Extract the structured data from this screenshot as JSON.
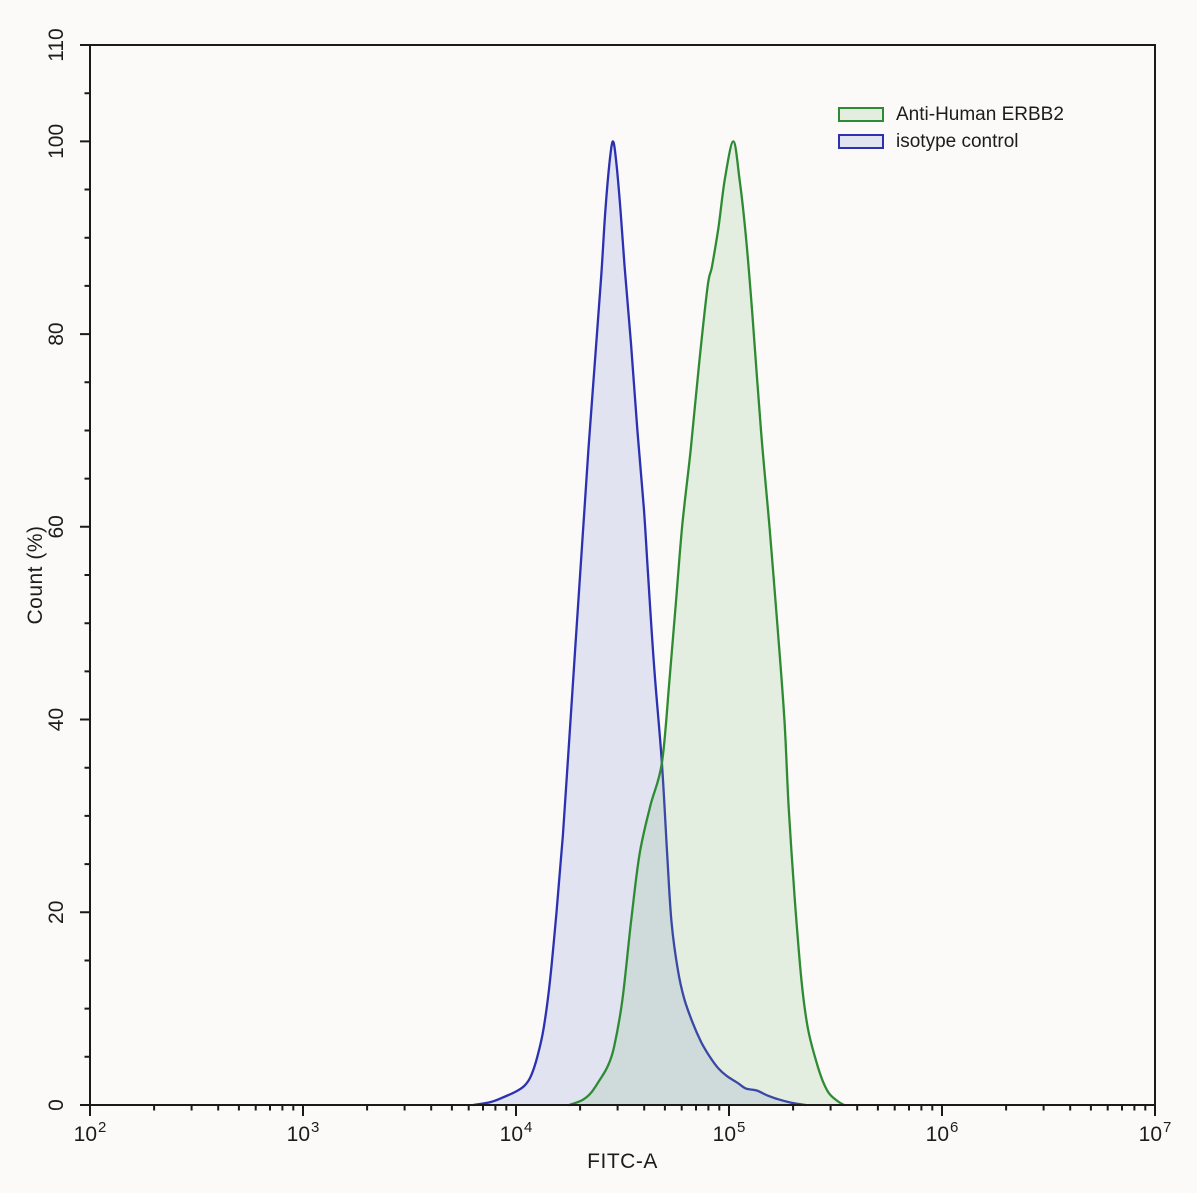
{
  "figure": {
    "background": "#fbfaf8",
    "axis_color": "#1a1a1a",
    "text_color": "#1c1c1c"
  },
  "chart_data": {
    "type": "area",
    "title": "",
    "xlabel": "FITC-A",
    "ylabel": "Count (%)",
    "x_scale": "log10",
    "x_range_log10": [
      2,
      7
    ],
    "x_major_tick_exponents": [
      2,
      3,
      4,
      5,
      6,
      7
    ],
    "ylim": [
      0,
      110
    ],
    "y_major_ticks": [
      0,
      20,
      40,
      60,
      80,
      100,
      110
    ],
    "y_minor_tick_step": 5,
    "grid": false,
    "legend_position": "top-right",
    "series": [
      {
        "name": "Anti-Human ERBB2",
        "stroke": "#2f8b33",
        "fill": "rgba(125,185,115,0.18)",
        "peak_log10": 5.02,
        "peak_pct": 100,
        "points": [
          [
            4.25,
            0
          ],
          [
            4.31,
            0.5
          ],
          [
            4.35,
            1.2
          ],
          [
            4.39,
            2.5
          ],
          [
            4.43,
            4.0
          ],
          [
            4.46,
            6.0
          ],
          [
            4.5,
            11
          ],
          [
            4.54,
            19
          ],
          [
            4.58,
            26
          ],
          [
            4.63,
            31
          ],
          [
            4.685,
            35.5
          ],
          [
            4.72,
            44
          ],
          [
            4.75,
            52
          ],
          [
            4.78,
            60
          ],
          [
            4.82,
            68
          ],
          [
            4.86,
            77
          ],
          [
            4.9,
            85
          ],
          [
            4.92,
            87
          ],
          [
            4.95,
            91
          ],
          [
            4.98,
            96
          ],
          [
            5.02,
            100
          ],
          [
            5.05,
            96
          ],
          [
            5.08,
            90
          ],
          [
            5.11,
            82
          ],
          [
            5.15,
            70
          ],
          [
            5.19,
            60
          ],
          [
            5.23,
            49
          ],
          [
            5.26,
            40
          ],
          [
            5.28,
            31
          ],
          [
            5.31,
            21
          ],
          [
            5.34,
            13
          ],
          [
            5.37,
            8.0
          ],
          [
            5.41,
            4.5
          ],
          [
            5.44,
            2.5
          ],
          [
            5.47,
            1.2
          ],
          [
            5.51,
            0.4
          ],
          [
            5.54,
            0
          ]
        ]
      },
      {
        "name": "isotype control",
        "stroke": "#2b31b0",
        "fill": "rgba(100,110,210,0.17)",
        "peak_log10": 4.45,
        "peak_pct": 100,
        "points": [
          [
            3.8,
            0
          ],
          [
            3.88,
            0.3
          ],
          [
            3.94,
            0.8
          ],
          [
            4.0,
            1.4
          ],
          [
            4.04,
            2.0
          ],
          [
            4.07,
            3.0
          ],
          [
            4.1,
            5.0
          ],
          [
            4.13,
            8.0
          ],
          [
            4.16,
            13
          ],
          [
            4.19,
            20
          ],
          [
            4.22,
            28
          ],
          [
            4.25,
            38
          ],
          [
            4.28,
            48
          ],
          [
            4.31,
            58
          ],
          [
            4.34,
            68
          ],
          [
            4.37,
            77
          ],
          [
            4.4,
            86
          ],
          [
            4.42,
            93
          ],
          [
            4.44,
            98
          ],
          [
            4.455,
            100
          ],
          [
            4.47,
            98
          ],
          [
            4.49,
            93
          ],
          [
            4.51,
            87
          ],
          [
            4.54,
            79
          ],
          [
            4.57,
            70
          ],
          [
            4.6,
            62
          ],
          [
            4.62,
            55
          ],
          [
            4.65,
            45
          ],
          [
            4.685,
            35.5
          ],
          [
            4.71,
            26
          ],
          [
            4.73,
            19
          ],
          [
            4.76,
            14
          ],
          [
            4.79,
            11
          ],
          [
            4.83,
            8.5
          ],
          [
            4.87,
            6.5
          ],
          [
            4.91,
            5.0
          ],
          [
            4.95,
            3.8
          ],
          [
            4.99,
            3.0
          ],
          [
            5.04,
            2.3
          ],
          [
            5.08,
            1.7
          ],
          [
            5.13,
            1.5
          ],
          [
            5.18,
            1.0
          ],
          [
            5.23,
            0.6
          ],
          [
            5.29,
            0.25
          ],
          [
            5.36,
            0
          ]
        ]
      }
    ]
  }
}
